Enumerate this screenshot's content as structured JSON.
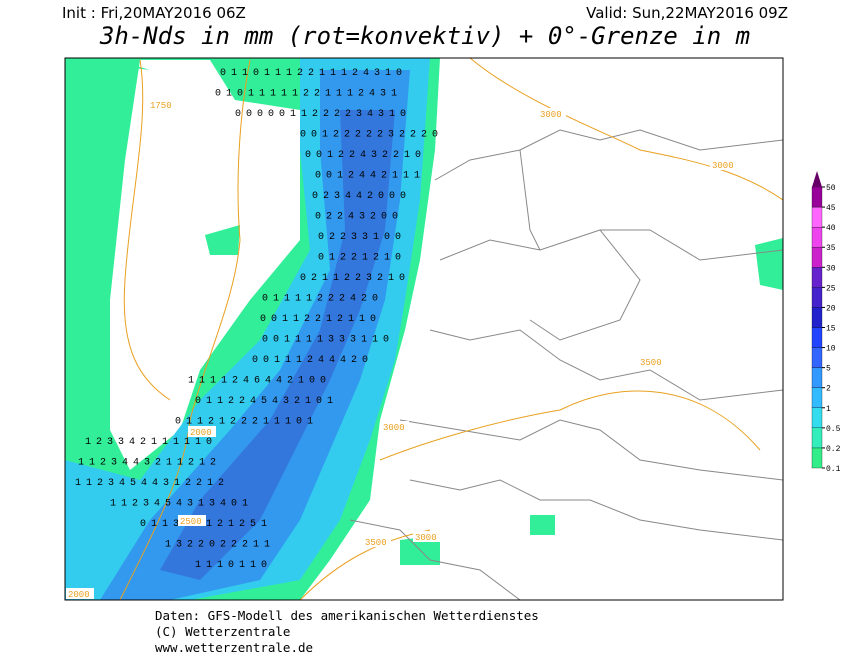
{
  "header": {
    "init": "Init : Fri,20MAY2016 06Z",
    "valid": "Valid: Sun,22MAY2016 09Z",
    "title": "3h-Nds in mm (rot=konvektiv) + 0°-Grenze in m"
  },
  "map": {
    "contour_labels": [
      1750,
      3000,
      3000,
      3500,
      2000,
      2500,
      3000,
      3500,
      3000,
      2000
    ],
    "precip_rows": [
      "0 1 1 0 1 1 1 2 2 1 1 1 2 4 3 1 0",
      "0 1 0 1 1 1 1 1 2 2 1 1 1 2 4 3 1",
      "0 0 0 0 0 1 1 2 2 2 2 3 4 3 1 0",
      "0 0 1 2 2 2 2 2 3 2 2 2 0",
      "0 0 1 2 2 4 3 2 2 1 0",
      "0 0 1 2 4 4 2 1 1 1",
      "0 2 3 4 4 2 0 0 0",
      "0 2 2 4 3 2 0 0",
      "0 2 2 3 3 1 0 0",
      "0 1 2 2 1 2 1 0",
      "0 2 1 1 2 2 3 2 1 0",
      "0 1 1 1 1 2 2 2 4 2 0",
      "0 0 1 1 2 2 1 2 1 1 0",
      "0 0 1 1 1 1 3 3 3 1 1 0",
      "0 0 1 1 1 2 4 4 4 2 0",
      "1 1 1 1 2 4 6 4 4 2 1 0 0",
      "0 1 1 2 2 4 5 4 3 2 1 0 1",
      "0 1 1 2 1 2 2 2 1 1 1 0 1",
      "1 2 3 3 4 2 1 1 1 1 1 0",
      "1 1 2 3 4 4 3 2 1 1 2 1 2",
      "1 1 2 3 4 5 4 4 3 1 2 2 1 2",
      "1 1 2 3 4 5 4 3 1 3 4 0 1",
      "0 1 1 3 2 2 1 2 1 2 5 1",
      "1 3 2 2 0 2 2 2 1 1",
      "1 1 1 0 1 1 0"
    ]
  },
  "colorbar": {
    "levels": [
      0.1,
      0.2,
      0.5,
      1,
      2,
      5,
      10,
      15,
      20,
      25,
      30,
      35,
      40,
      45,
      50
    ],
    "colors": [
      "#33ee88",
      "#33eebb",
      "#33ddee",
      "#33bbff",
      "#3399ff",
      "#3366ff",
      "#2244ff",
      "#2222cc",
      "#4422cc",
      "#6622cc",
      "#cc22cc",
      "#ee44ee",
      "#ff66ff",
      "#990099",
      "#660066"
    ]
  },
  "footer": {
    "lines": [
      "Daten: GFS-Modell des amerikanischen Wetterdienstes",
      "(C) Wetterzentrale",
      "www.wetterzentrale.de"
    ]
  }
}
